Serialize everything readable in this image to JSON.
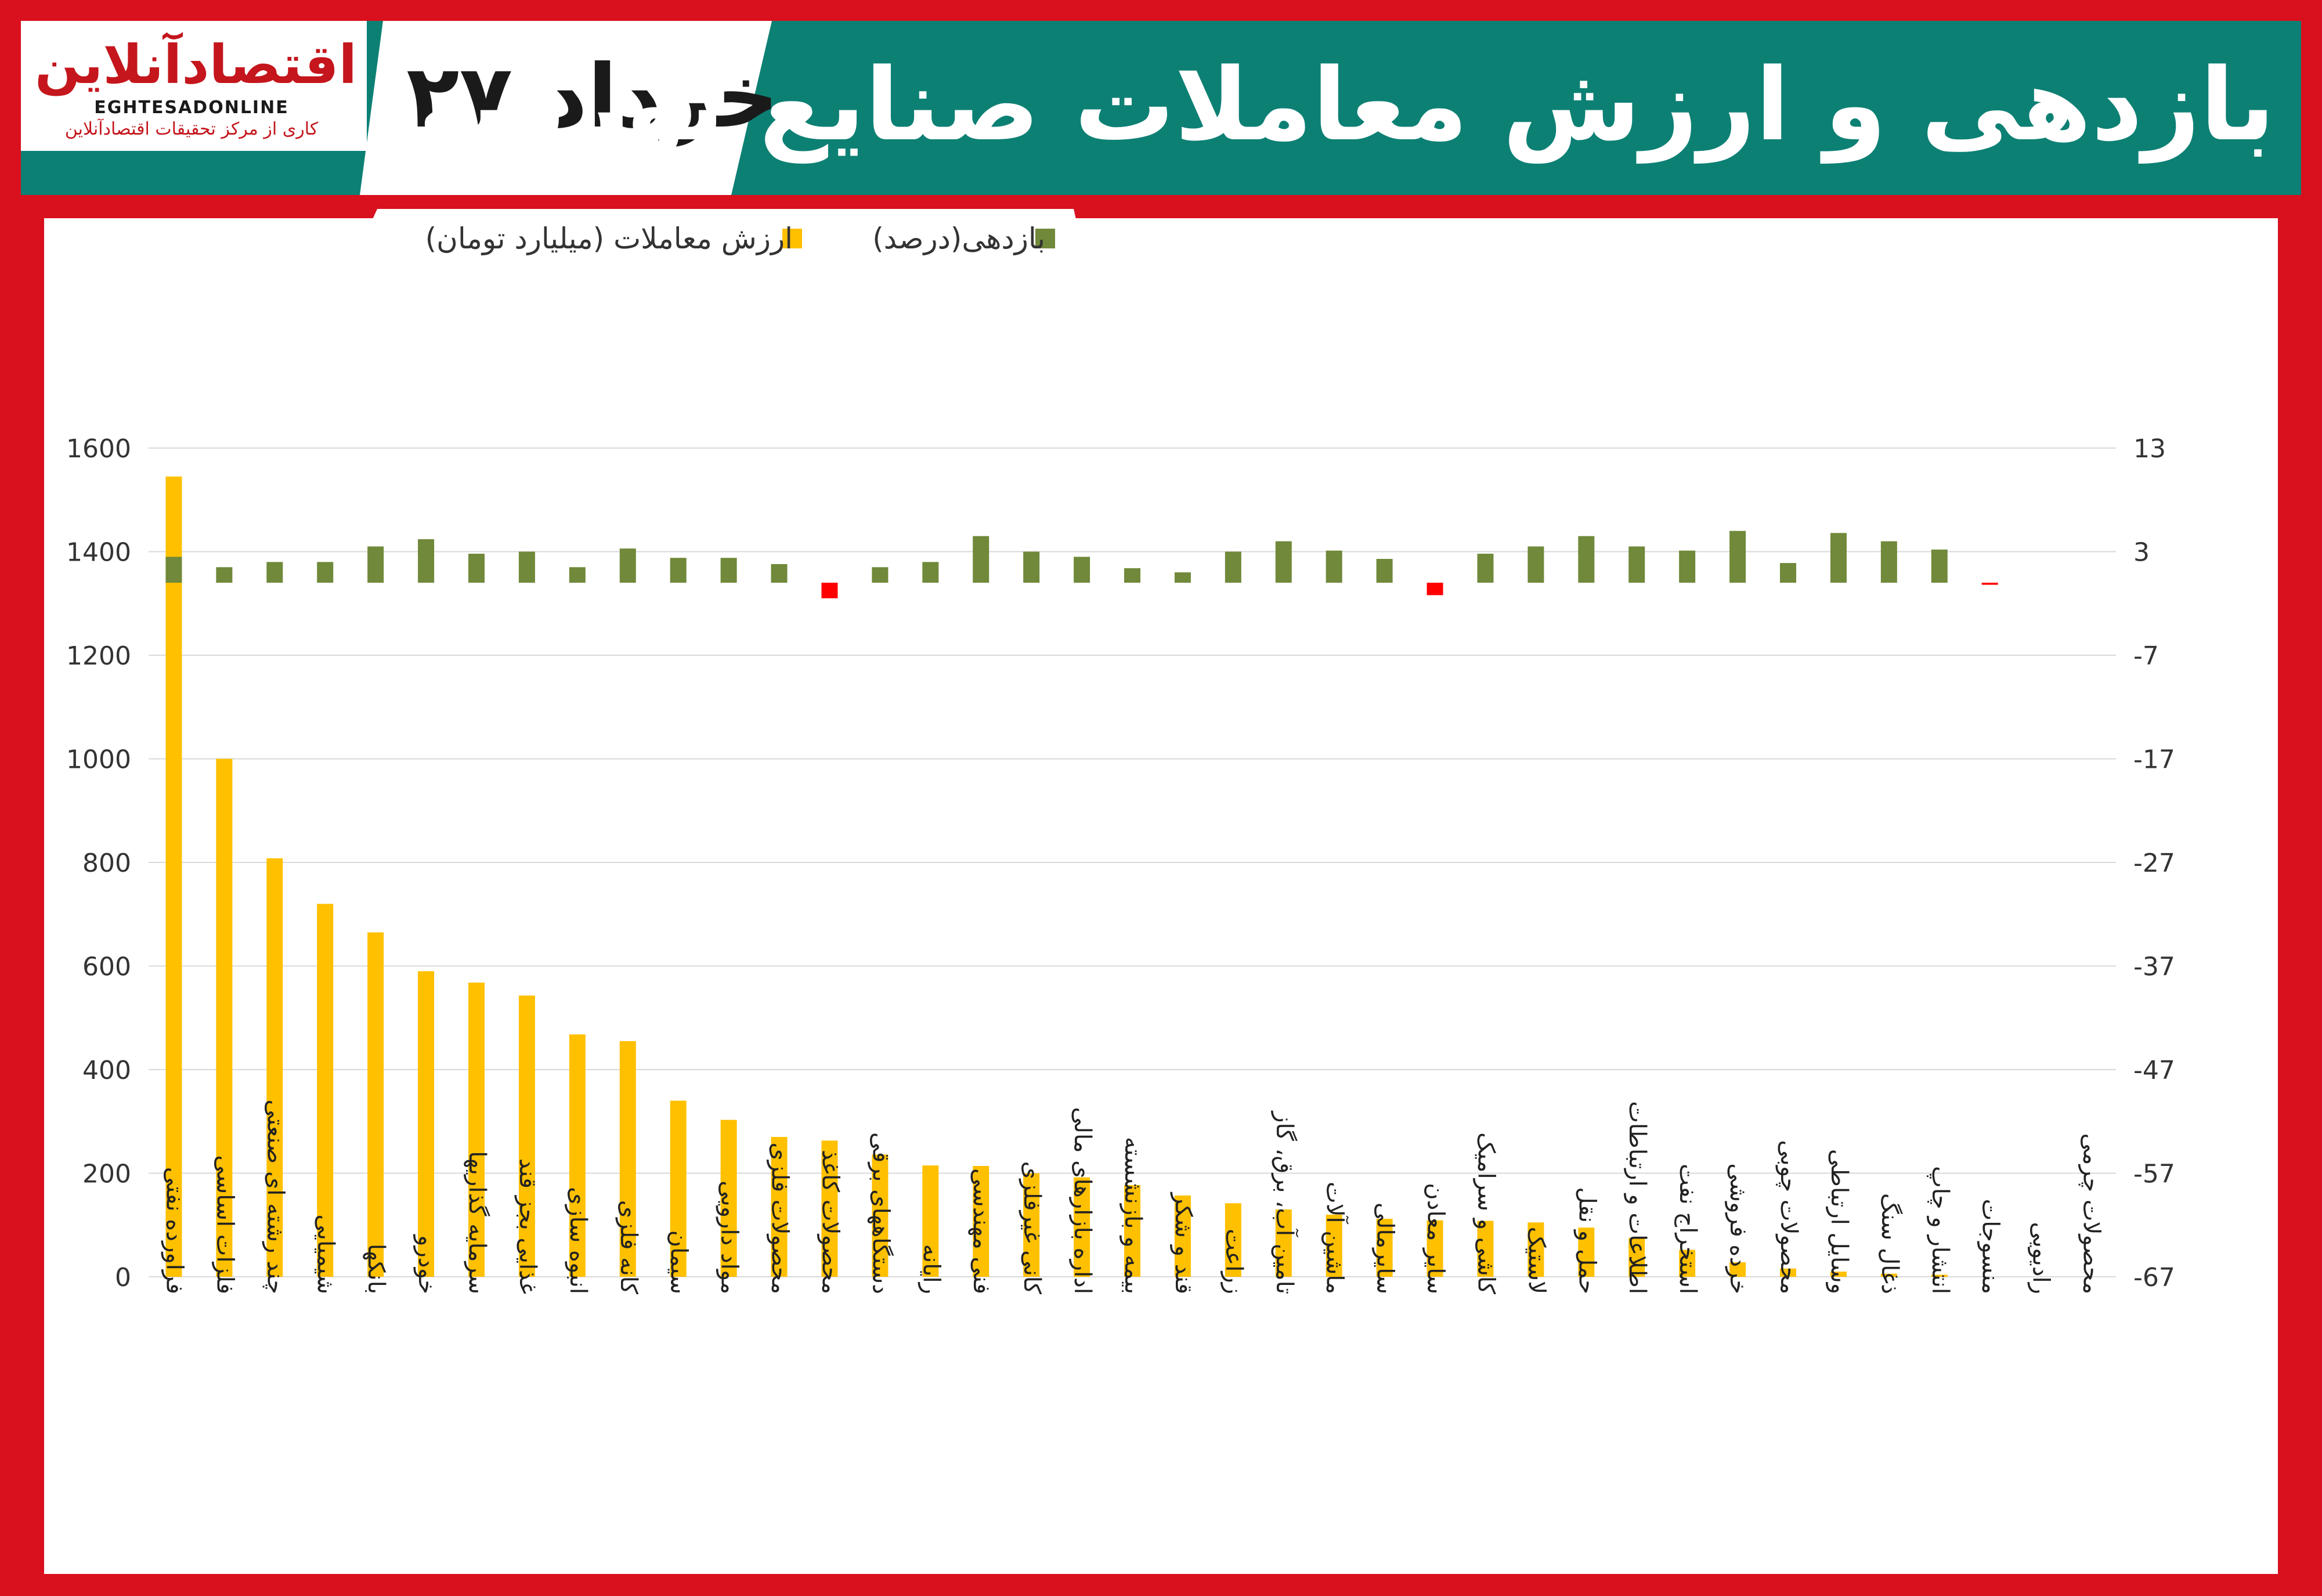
{
  "header": {
    "title": "بازدهی و ارزش معاملات صنایع بورسی",
    "date": "۲۷ خرداد",
    "logo_text": "اقتصادآنلاین",
    "logo_en": "EGHTESADONLINE",
    "logo_sub": "کاری از مرکز تحقیقات اقتصادآنلاین"
  },
  "colors": {
    "header_bg": "#0d8074",
    "frame": "#d9101e",
    "value_bar": "#ffc000",
    "gain_positive": "#70893a",
    "gain_negative": "#ff0000",
    "grid": "#d9d9d9"
  },
  "chart_data": {
    "type": "bar",
    "legend": {
      "gain_label": "بازدهی(درصد)",
      "value_label": "ارزش معاملات (میلیارد تومان)",
      "placement": "top"
    },
    "grid": true,
    "left_axis": {
      "ticks": [
        "0",
        "200",
        "400",
        "600",
        "800",
        "1000",
        "1200",
        "1400",
        "1600"
      ],
      "range": [
        0,
        1600
      ]
    },
    "right_axis": {
      "ticks": [
        "13",
        "3",
        "-7",
        "-17",
        "-27",
        "-37",
        "-47",
        "-57",
        "-67"
      ],
      "range": [
        -67,
        13
      ]
    },
    "categories": [
      "فراورده نفتی",
      "فلزات اساسی",
      "چند رشته ای صنعتی",
      "شیمیایی",
      "بانکها",
      "خودرو",
      "سرمایه گذاریها",
      "غذایی بجز قند",
      "انبوه سازی",
      "کانه فلزی",
      "سیمان",
      "مواد دارویی",
      "محصولات فلزی",
      "محصولات کاغذ",
      "دستگاههای برقی",
      "رایانه",
      "فنی مهندسی",
      "کانی غیرفلزی",
      "اداره بازارهای مالی",
      "بیمه و بازنشسته",
      "قند و شکر",
      "زراعت",
      "تامین آب، برق، گاز",
      "ماشین آلات",
      "سایرمالی",
      "سایر معادن",
      "کاشی و سرامیک",
      "لاستیک",
      "حمل و نقل",
      "اطلاعات و ارتباطات",
      "استخراج نفت",
      "خرده فروشی",
      "محصولات چوبی",
      "وسایل ارتباطی",
      "ذغال سنگ",
      "انتشار و چاپ",
      "منسوجات",
      "رادیویی",
      "محصولات چرمی"
    ],
    "series": [
      {
        "name": "ارزش معاملات (میلیارد تومان)",
        "axis": "left",
        "values": [
          1545,
          1000,
          808,
          720,
          665,
          590,
          568,
          543,
          468,
          455,
          340,
          303,
          270,
          263,
          236,
          215,
          214,
          200,
          192,
          177,
          157,
          142,
          130,
          120,
          112,
          109,
          108,
          105,
          95,
          75,
          52,
          28,
          16,
          10,
          6,
          4,
          0,
          0,
          0
        ]
      },
      {
        "name": "بازدهی(درصد)",
        "axis": "right",
        "values": [
          2.5,
          1.5,
          2,
          2,
          3.5,
          4.2,
          2.8,
          3,
          1.5,
          3.3,
          2.4,
          2.4,
          1.8,
          -1.5,
          1.5,
          2,
          4.5,
          3,
          2.5,
          1.4,
          1,
          3,
          4,
          3.1,
          2.3,
          -1.2,
          2.8,
          3.5,
          4.5,
          3.5,
          3.1,
          5,
          1.9,
          4.8,
          4,
          3.2,
          -0.2,
          0,
          0
        ]
      }
    ]
  }
}
